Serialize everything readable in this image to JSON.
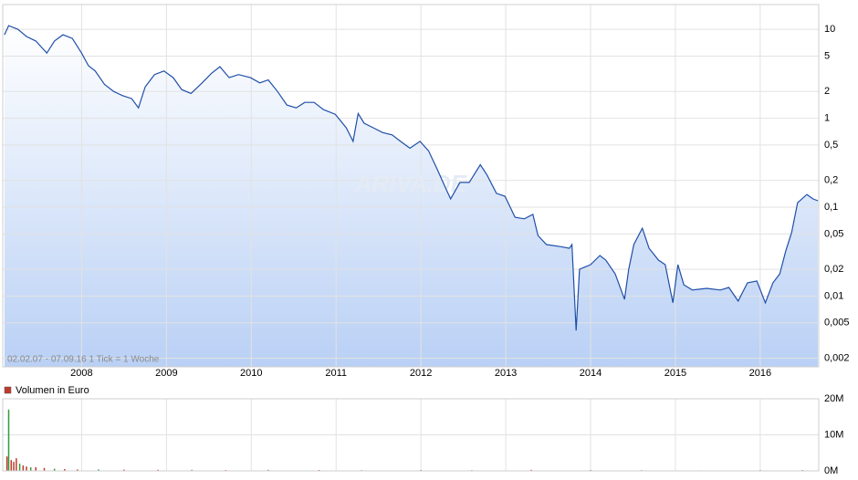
{
  "chart_data": [
    {
      "type": "line",
      "watermark": "ARIVA.DE",
      "range_note": "02.02.07 - 07.09.16   1 Tick = 1 Woche",
      "log_scale": true,
      "grid": true,
      "xlim": [
        2007.07,
        2016.69
      ],
      "xticks": [
        2008,
        2009,
        2010,
        2011,
        2012,
        2013,
        2014,
        2015,
        2016
      ],
      "ylim": [
        0.0016,
        19
      ],
      "yticks": [
        {
          "value": 0.002,
          "label": "0,002"
        },
        {
          "value": 0.005,
          "label": "0,005"
        },
        {
          "value": 0.01,
          "label": "0,01"
        },
        {
          "value": 0.02,
          "label": "0,02"
        },
        {
          "value": 0.05,
          "label": "0,05"
        },
        {
          "value": 0.1,
          "label": "0,1"
        },
        {
          "value": 0.2,
          "label": "0,2"
        },
        {
          "value": 0.5,
          "label": "0,5"
        },
        1,
        2,
        5,
        10
      ],
      "color": "#1f4fa8",
      "x": [
        2007.09,
        2007.14,
        2007.25,
        2007.35,
        2007.46,
        2007.59,
        2007.68,
        2007.78,
        2007.89,
        2008.0,
        2008.08,
        2008.16,
        2008.27,
        2008.38,
        2008.48,
        2008.59,
        2008.67,
        2008.75,
        2008.86,
        2008.97,
        2009.08,
        2009.18,
        2009.29,
        2009.42,
        2009.53,
        2009.63,
        2009.74,
        2009.85,
        2009.99,
        2010.1,
        2010.2,
        2010.31,
        2010.42,
        2010.53,
        2010.63,
        2010.74,
        2010.85,
        2010.99,
        2011.12,
        2011.2,
        2011.26,
        2011.33,
        2011.44,
        2011.55,
        2011.66,
        2011.76,
        2011.87,
        2011.99,
        2012.09,
        2012.19,
        2012.3,
        2012.35,
        2012.46,
        2012.57,
        2012.7,
        2012.78,
        2012.89,
        2012.99,
        2013.11,
        2013.22,
        2013.32,
        2013.38,
        2013.48,
        2013.65,
        2013.75,
        2013.78,
        2013.83,
        2013.87,
        2014.0,
        2014.11,
        2014.18,
        2014.29,
        2014.4,
        2014.45,
        2014.51,
        2014.61,
        2014.69,
        2014.8,
        2014.88,
        2014.97,
        2015.03,
        2015.1,
        2015.2,
        2015.37,
        2015.53,
        2015.63,
        2015.74,
        2015.85,
        2015.96,
        2016.06,
        2016.15,
        2016.23,
        2016.3,
        2016.37,
        2016.44,
        2016.55,
        2016.62,
        2016.68
      ],
      "values": [
        8.7,
        11,
        10,
        8.3,
        7.4,
        5.4,
        7.4,
        8.7,
        7.9,
        5.4,
        3.9,
        3.4,
        2.4,
        2.0,
        1.8,
        1.66,
        1.31,
        2.26,
        3.1,
        3.4,
        2.86,
        2.1,
        1.9,
        2.5,
        3.2,
        3.8,
        2.86,
        3.1,
        2.86,
        2.5,
        2.7,
        2.0,
        1.41,
        1.31,
        1.51,
        1.51,
        1.25,
        1.11,
        0.78,
        0.55,
        1.13,
        0.88,
        0.78,
        0.69,
        0.65,
        0.55,
        0.46,
        0.55,
        0.43,
        0.27,
        0.157,
        0.124,
        0.19,
        0.19,
        0.3,
        0.23,
        0.143,
        0.133,
        0.077,
        0.074,
        0.083,
        0.048,
        0.038,
        0.036,
        0.0345,
        0.038,
        0.0041,
        0.02,
        0.0226,
        0.0286,
        0.0254,
        0.0178,
        0.0092,
        0.02,
        0.038,
        0.058,
        0.0345,
        0.0254,
        0.0226,
        0.0084,
        0.0226,
        0.0134,
        0.0117,
        0.0122,
        0.0117,
        0.0125,
        0.0088,
        0.0141,
        0.0148,
        0.0084,
        0.0141,
        0.0178,
        0.032,
        0.052,
        0.112,
        0.139,
        0.124,
        0.118
      ]
    },
    {
      "type": "bar",
      "legend": "Volumen in Euro",
      "legend_color": "#c0392b",
      "grid": true,
      "xlim": [
        2007.07,
        2016.69
      ],
      "xticks": [
        2008,
        2009,
        2010,
        2011,
        2012,
        2013,
        2014,
        2015,
        2016
      ],
      "ylim": [
        0,
        20000000
      ],
      "yticks": [
        {
          "value": 0,
          "label": "0M"
        },
        {
          "value": 10000000,
          "label": "10M"
        },
        {
          "value": 20000000,
          "label": "20M"
        }
      ],
      "x": [
        2007.12,
        2007.14,
        2007.17,
        2007.2,
        2007.23,
        2007.27,
        2007.31,
        2007.35,
        2007.4,
        2007.46,
        2007.56,
        2007.68,
        2007.8,
        2007.95,
        2008.2,
        2008.5,
        2008.9,
        2009.3,
        2009.7,
        2010.2,
        2010.8,
        2011.3,
        2012.0,
        2012.6,
        2013.3,
        2014.0,
        2014.6,
        2015.3,
        2016.0,
        2016.5
      ],
      "values": [
        4000000,
        17000000,
        3000000,
        2500000,
        3500000,
        2000000,
        1500000,
        1200000,
        1000000,
        1000000,
        800000,
        600000,
        500000,
        400000,
        400000,
        350000,
        300000,
        300000,
        250000,
        300000,
        250000,
        200000,
        250000,
        200000,
        300000,
        250000,
        200000,
        150000,
        200000,
        250000
      ],
      "colors": [
        "#c0392b",
        "#2e9e3e",
        "#c0392b",
        "#c0392b",
        "#c0392b",
        "#2e9e3e",
        "#c0392b",
        "#c0392b",
        "#2e9e3e",
        "#c0392b",
        "#c0392b",
        "#2e9e3e",
        "#c0392b",
        "#c0392b",
        "#2e9e3e",
        "#c0392b",
        "#c0392b",
        "#2e9e3e",
        "#c0392b",
        "#2e9e3e",
        "#c0392b",
        "#c0392b",
        "#2e9e3e",
        "#c0392b",
        "#c0392b",
        "#2e9e3e",
        "#c0392b",
        "#2e9e3e",
        "#c0392b",
        "#2e9e3e"
      ]
    }
  ]
}
